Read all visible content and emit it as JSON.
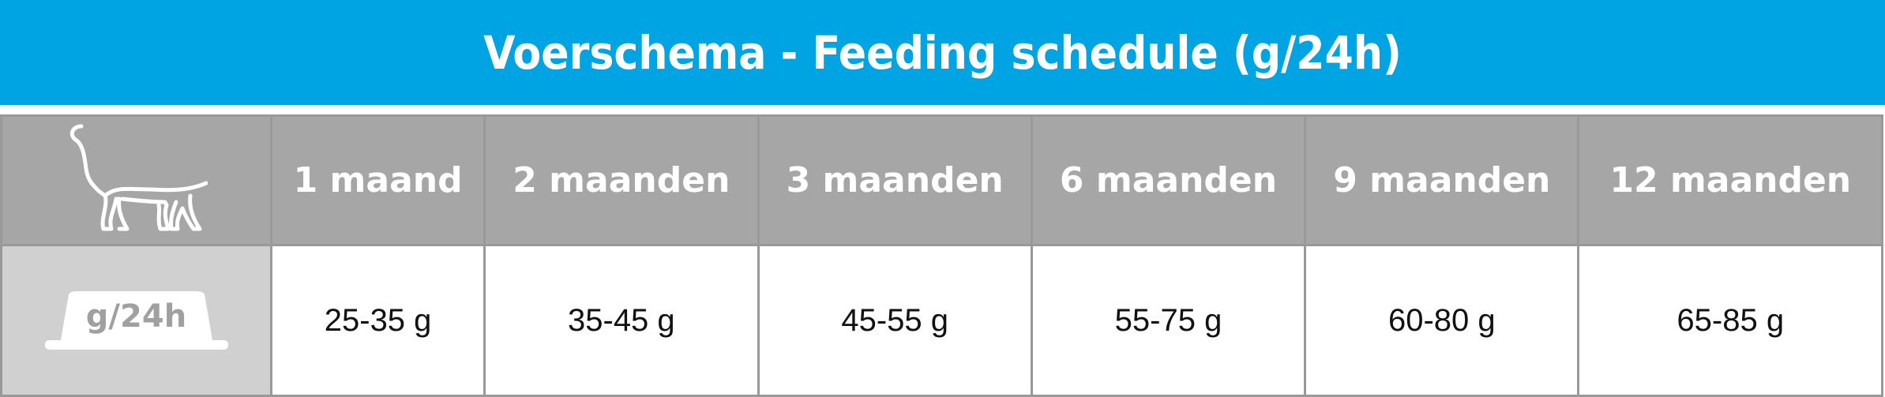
{
  "title": "Voerschema - Feeding schedule (g/24h)",
  "header": {
    "icon": "cat-icon",
    "columns": [
      "1 maand",
      "2 maanden",
      "3 maanden",
      "6 maanden",
      "9 maanden",
      "12 maanden"
    ]
  },
  "row": {
    "label": "g/24h",
    "icon": "food-bowl-icon",
    "values": [
      "25-35 g",
      "35-45 g",
      "45-55 g",
      "55-75 g",
      "60-80 g",
      "65-85 g"
    ]
  },
  "colors": {
    "banner": "#00a4e2",
    "header": "#a6a6a6",
    "label_cell": "#d0d0d0",
    "border": "#999999"
  }
}
